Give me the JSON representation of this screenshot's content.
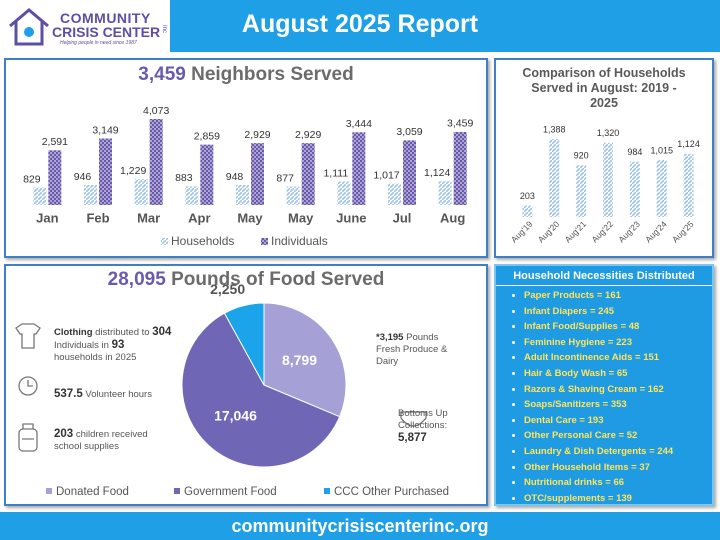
{
  "header": {
    "title": "August 2025 Report",
    "logo_line1": "COMMUNITY",
    "logo_line2": "CRISIS CENTER",
    "logo_suffix": "Inc",
    "logo_tagline": "Helping people in need since 1987"
  },
  "chart_data": [
    {
      "type": "bar",
      "title_number": "3,459",
      "title": "Neighbors Served",
      "categories": [
        "Jan",
        "Feb",
        "Mar",
        "Apr",
        "May",
        "May",
        "June",
        "Jul",
        "Aug"
      ],
      "series": [
        {
          "name": "Households",
          "color": "#9dc3e6",
          "values": [
            829,
            946,
            1229,
            883,
            948,
            877,
            1111,
            1017,
            1124
          ],
          "value_labels": [
            "829",
            "946",
            "1,229",
            "883",
            "948",
            "877",
            "1,111",
            "1,017",
            "1,124"
          ]
        },
        {
          "name": "Individuals",
          "color": "#6a5aae",
          "values": [
            2591,
            3149,
            4073,
            2859,
            2929,
            2929,
            3444,
            3059,
            3459
          ],
          "value_labels": [
            "2,591",
            "3,149",
            "4,073",
            "2,859",
            "2,929",
            "2,929",
            "3,444",
            "3,059",
            "3,459"
          ]
        }
      ],
      "legend": "bottom"
    },
    {
      "type": "bar",
      "title": "Comparison of Households Served in August: 2019 - 2025",
      "categories": [
        "Aug'19",
        "Aug'20",
        "Aug'21",
        "Aug'22",
        "Aug'23",
        "Aug'24",
        "Aug'25"
      ],
      "values": [
        203,
        1388,
        920,
        1320,
        984,
        1015,
        1124
      ],
      "value_labels": [
        "203",
        "1,388",
        "920",
        "1,320",
        "984",
        "1,015",
        "1,124"
      ],
      "color": "#9dc3e6"
    },
    {
      "type": "pie",
      "title_number": "28,095",
      "title": "Pounds of Food Served",
      "categories": [
        "Donated Food",
        "Government Food",
        "CCC Other Purchased"
      ],
      "values": [
        8799,
        17046,
        2250
      ],
      "value_labels": [
        "8,799",
        "17,046",
        "2,250"
      ],
      "colors": [
        "#a5a0d6",
        "#6f67b6",
        "#1ba4ea"
      ],
      "legend": "bottom"
    }
  ],
  "stats": {
    "clothing": {
      "label": "Clothing",
      "text1": "distributed to",
      "number1": "304",
      "text2": "Individuals in",
      "number2": "93",
      "text3": "households in 2025"
    },
    "volunteer": {
      "number": "537.5",
      "text": "Volunteer hours"
    },
    "children": {
      "number": "203",
      "text": "children received school supplies"
    },
    "produce": {
      "number": "*3,195",
      "text": "Pounds Fresh Produce & Dairy"
    },
    "bottoms": {
      "text": "Bottoms Up Collections:",
      "number": "5,877"
    }
  },
  "necessities": {
    "title": "Household Necessities Distributed",
    "items": [
      "Paper Products = 161",
      "Infant Diapers = 245",
      "Infant Food/Supplies = 48",
      "Feminine Hygiene = 223",
      "Adult Incontinence Aids = 151",
      "Hair & Body Wash = 65",
      "Razors & Shaving Cream = 162",
      "Soaps/Sanitizers = 353",
      "Dental Care = 193",
      "Other Personal Care = 52",
      "Laundry & Dish Detergents = 244",
      "Other Household Items = 37",
      "Nutritional drinks = 66",
      "OTC/supplements = 139"
    ]
  },
  "footer": {
    "url": "communitycrisiscenterinc.org"
  }
}
